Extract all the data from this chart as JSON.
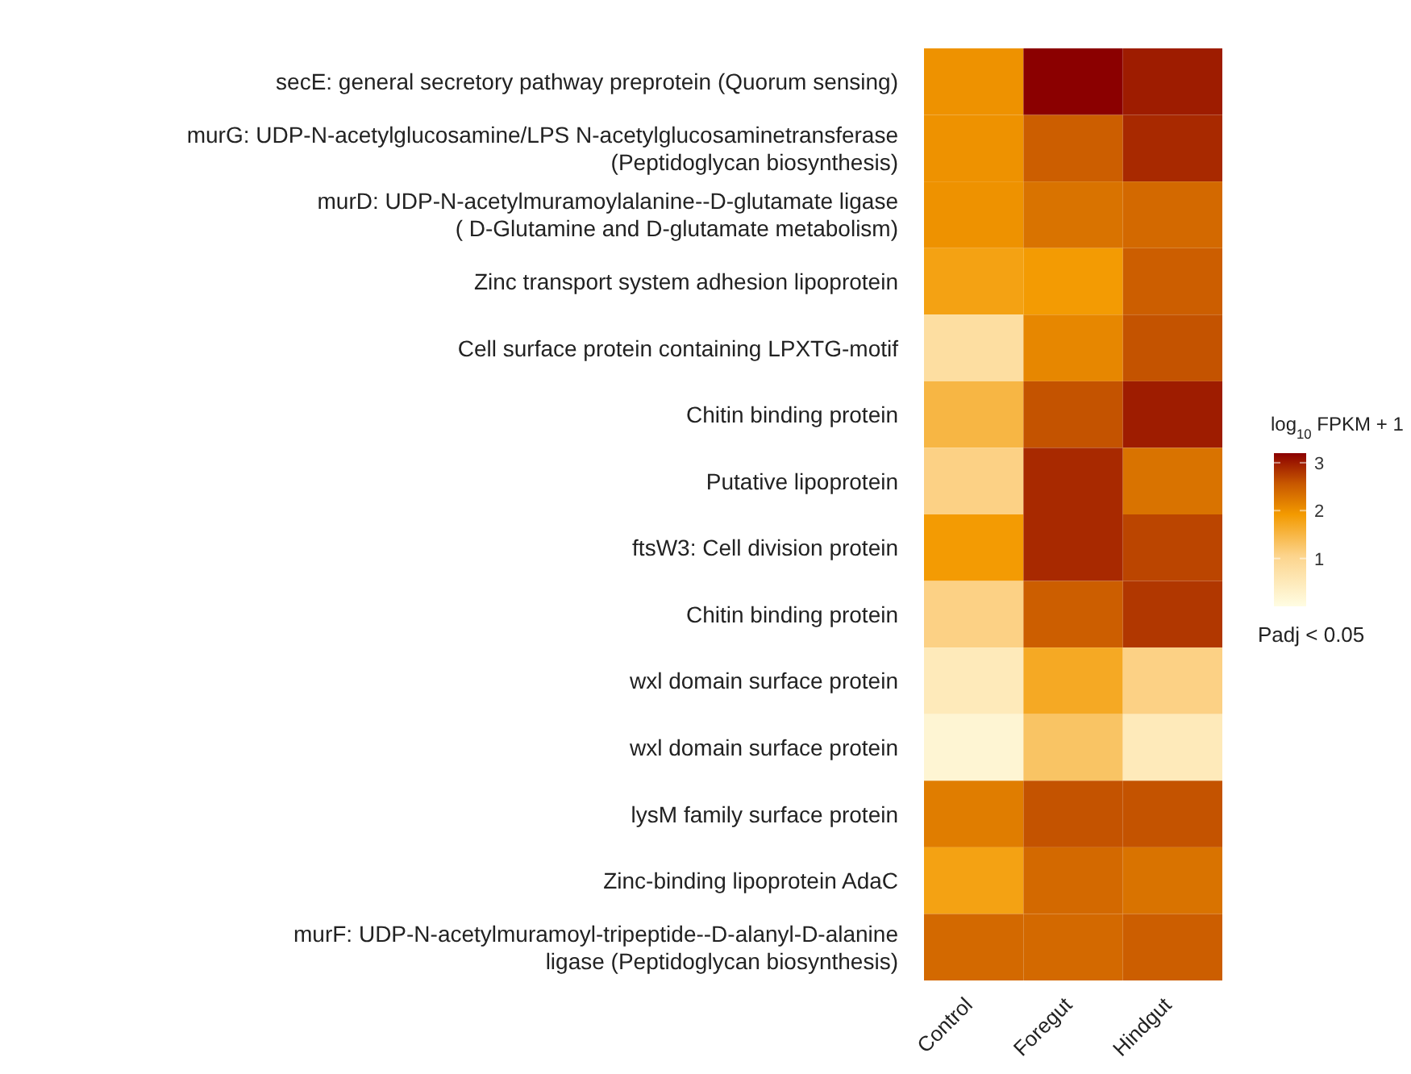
{
  "chart_data": {
    "type": "heatmap",
    "categories": [
      "Control",
      "Foregut",
      "Hindgut"
    ],
    "y_categories": [
      "secE: general secretory pathway preprotein (Quorum sensing)",
      "murG: UDP-N-acetylglucosamine/LPS N-acetylglucosaminetransferase\n(Peptidoglycan biosynthesis)",
      "murD: UDP-N-acetylmuramoylalanine--D-glutamate ligase\n( D-Glutamine and D-glutamate metabolism)",
      "Zinc transport system adhesion lipoprotein",
      "Cell surface protein containing LPXTG-motif",
      "Chitin binding protein",
      "Putative lipoprotein",
      "ftsW3: Cell division protein",
      "Chitin binding protein",
      "wxl domain surface protein",
      "wxl domain surface protein",
      "lysM family surface protein",
      "Zinc-binding lipoprotein AdaC",
      "murF: UDP-N-acetylmuramoyl-tripeptide--D-alanyl-D-alanine\nligase  (Peptidoglycan biosynthesis)"
    ],
    "cells": [
      [
        2.0,
        3.2,
        3.0
      ],
      [
        2.0,
        2.5,
        2.9
      ],
      [
        2.0,
        2.3,
        2.4
      ],
      [
        1.8,
        1.9,
        2.5
      ],
      [
        0.8,
        2.1,
        2.6
      ],
      [
        1.5,
        2.6,
        3.0
      ],
      [
        1.1,
        2.9,
        2.3
      ],
      [
        1.9,
        2.9,
        2.7
      ],
      [
        1.1,
        2.5,
        2.8
      ],
      [
        0.5,
        1.7,
        1.1
      ],
      [
        0.2,
        1.3,
        0.5
      ],
      [
        2.2,
        2.6,
        2.6
      ],
      [
        1.8,
        2.4,
        2.3
      ],
      [
        2.4,
        2.4,
        2.5
      ]
    ],
    "clabel": "log$_{10}$ FPKM + 1",
    "clim": [
      0,
      3.2
    ],
    "cticks": [
      1,
      2,
      3
    ],
    "annotations": [
      "Padj < 0.05"
    ]
  }
}
